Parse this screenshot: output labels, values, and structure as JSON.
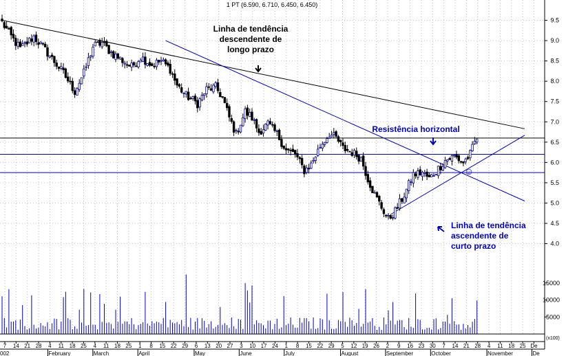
{
  "chart_data": {
    "type": "candlestick",
    "title": "1 PT (6.590, 6.710, 6.450, 6.450)",
    "series": [
      {
        "name": "price",
        "type": "candlestick"
      },
      {
        "name": "volume",
        "type": "bar"
      }
    ],
    "price_axis": {
      "ylim": [
        3.4,
        10.0
      ],
      "ticks": [
        "9.5",
        "9.0",
        "8.5",
        "8.0",
        "7.5",
        "7.0",
        "6.5",
        "6.0",
        "5.5",
        "5.0",
        "4.5",
        "4.0"
      ]
    },
    "volume_axis": {
      "ylim": [
        0,
        19000
      ],
      "ticks": [
        "15000",
        "10000",
        "5000"
      ],
      "unit_label": "x100"
    },
    "x_axis": {
      "day_labels": [
        "7",
        "14",
        "21",
        "28",
        "4",
        "11",
        "18",
        "25",
        "4",
        "11",
        "18",
        "25",
        "1",
        "8",
        "15",
        "22",
        "29",
        "6",
        "13",
        "20",
        "27",
        "3",
        "10",
        "17",
        "24",
        "1",
        "8",
        "15",
        "22",
        "29",
        "5",
        "12",
        "19",
        "26",
        "2",
        "9",
        "16",
        "23",
        "30",
        "7",
        "14",
        "21",
        "28",
        "4",
        "11",
        "18",
        "25",
        "De"
      ],
      "month_labels": [
        "002",
        "February",
        "March",
        "April",
        "May",
        "June",
        "July",
        "August",
        "September",
        "October",
        "November",
        "De"
      ]
    },
    "grid": true,
    "annotations": {
      "long_trend": "Linha de tendência descendente de longo prazo",
      "resistance": "Resistência horizontal",
      "short_trend": "Linha de tendência ascendente de curto prazo",
      "smiley": "☺"
    },
    "trendlines": [
      {
        "name": "long-term-downtrend",
        "color": "#000000",
        "from": {
          "bar": 0,
          "price": 9.5
        },
        "to": {
          "bar": 230,
          "price": 6.83
        }
      },
      {
        "name": "medium-downtrend",
        "color": "#0000c0",
        "from": {
          "bar": 72,
          "price": 9.0
        },
        "to": {
          "bar": 230,
          "price": 5.05
        }
      },
      {
        "name": "short-term-uptrend",
        "color": "#0000c0",
        "from": {
          "bar": 171,
          "price": 4.72
        },
        "to": {
          "bar": 230,
          "price": 6.67
        }
      }
    ],
    "horizontal_levels": [
      {
        "name": "resistance-upper",
        "price": 6.6,
        "color": "#000000"
      },
      {
        "name": "resistance-middle",
        "price": 6.2,
        "color": "#0000c0"
      },
      {
        "name": "resistance-lower",
        "price": 5.75,
        "color": "#0000c0"
      }
    ],
    "price_anchors": [
      [
        0,
        9.45
      ],
      [
        4,
        9.1
      ],
      [
        8,
        8.8
      ],
      [
        14,
        9.1
      ],
      [
        20,
        8.7
      ],
      [
        27,
        8.2
      ],
      [
        32,
        7.75
      ],
      [
        36,
        8.2
      ],
      [
        40,
        8.85
      ],
      [
        44,
        8.95
      ],
      [
        48,
        8.7
      ],
      [
        52,
        8.55
      ],
      [
        57,
        8.35
      ],
      [
        61,
        8.6
      ],
      [
        66,
        8.4
      ],
      [
        70,
        8.5
      ],
      [
        74,
        8.3
      ],
      [
        77,
        7.9
      ],
      [
        81,
        7.65
      ],
      [
        86,
        7.45
      ],
      [
        90,
        7.8
      ],
      [
        94,
        7.85
      ],
      [
        97,
        7.6
      ],
      [
        100,
        7.1
      ],
      [
        103,
        6.7
      ],
      [
        107,
        7.25
      ],
      [
        110,
        7.1
      ],
      [
        113,
        6.75
      ],
      [
        117,
        6.95
      ],
      [
        121,
        6.7
      ],
      [
        125,
        6.3
      ],
      [
        129,
        6.2
      ],
      [
        133,
        5.8
      ],
      [
        136,
        5.95
      ],
      [
        140,
        6.4
      ],
      [
        144,
        6.7
      ],
      [
        147,
        6.6
      ],
      [
        150,
        6.35
      ],
      [
        154,
        6.25
      ],
      [
        158,
        6.1
      ],
      [
        161,
        5.6
      ],
      [
        164,
        5.2
      ],
      [
        167,
        4.9
      ],
      [
        170,
        4.6
      ],
      [
        173,
        4.8
      ],
      [
        177,
        5.2
      ],
      [
        181,
        5.7
      ],
      [
        185,
        5.75
      ],
      [
        188,
        5.6
      ],
      [
        192,
        5.85
      ],
      [
        195,
        6.05
      ],
      [
        199,
        6.15
      ],
      [
        203,
        6.0
      ],
      [
        206,
        6.2
      ],
      [
        208,
        6.5
      ],
      [
        209,
        6.6
      ]
    ]
  }
}
